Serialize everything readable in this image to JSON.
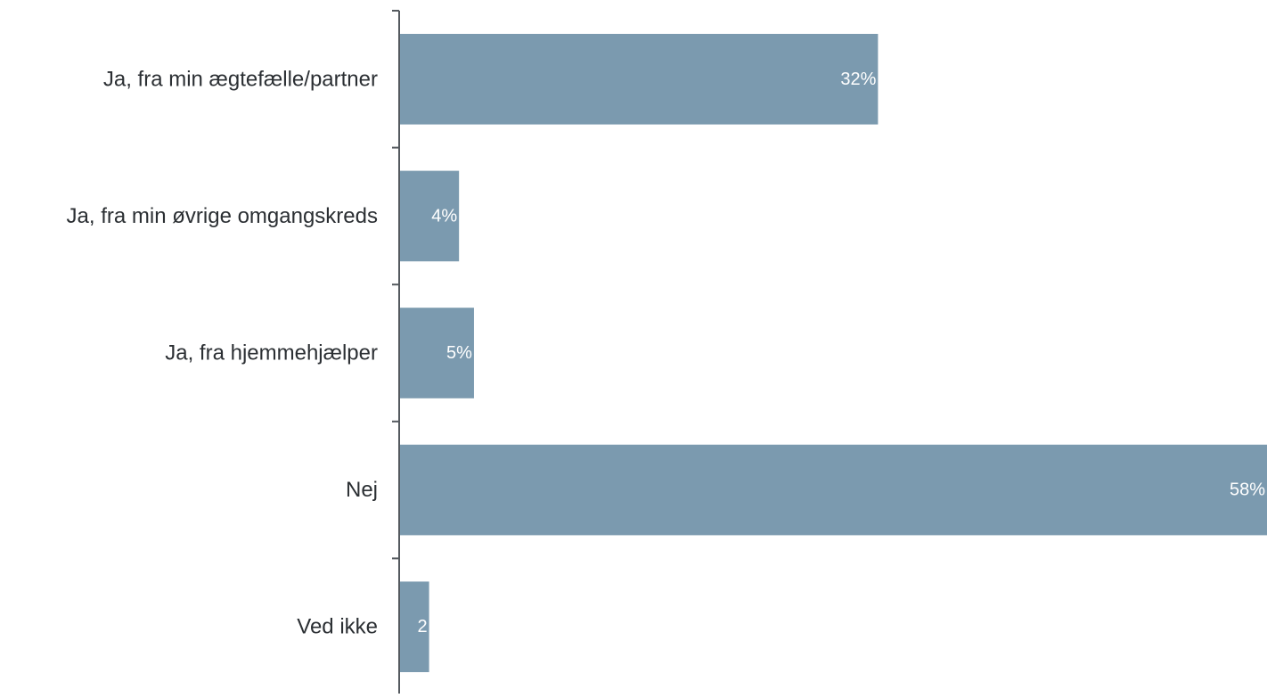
{
  "chart_data": {
    "type": "bar",
    "orientation": "horizontal",
    "categories": [
      "Ja, fra min ægtefælle/partner",
      "Ja, fra min øvrige omgangskreds",
      "Ja, fra hjemmehjælper",
      "Nej",
      "Ved ikke"
    ],
    "values": [
      32,
      4,
      5,
      58,
      2
    ],
    "value_labels": [
      "32%",
      "4%",
      "5%",
      "58%",
      "2"
    ],
    "unit": "%",
    "xlim": [
      0,
      58
    ],
    "grid": false,
    "legend": "none",
    "bar_color": "#7b9aaf",
    "axis_color": "#555a5f",
    "label_color": "#2b2f33",
    "data_label_color": "#ffffff"
  }
}
